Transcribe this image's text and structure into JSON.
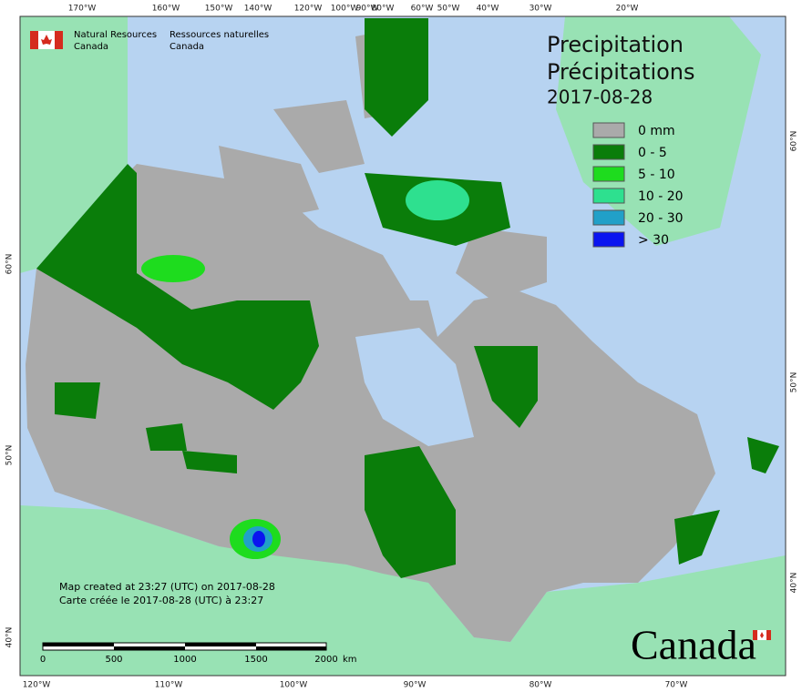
{
  "header": {
    "agency_en": [
      "Natural Resources",
      "Canada"
    ],
    "agency_fr": [
      "Ressources naturelles",
      "Canada"
    ]
  },
  "title": {
    "en": "Precipitation",
    "fr": "Précipitations",
    "date": "2017-08-28"
  },
  "legend": {
    "items": [
      {
        "label": "0 mm",
        "color": "#aaaaaa"
      },
      {
        "label": "0 - 5",
        "color": "#0a7d0a"
      },
      {
        "label": "5 - 10",
        "color": "#1edc1e"
      },
      {
        "label": "10 - 20",
        "color": "#2ee08f"
      },
      {
        "label": "20 - 30",
        "color": "#21a0c8"
      },
      {
        "label": "> 30",
        "color": "#0a14f0"
      }
    ]
  },
  "graticule": {
    "top": [
      "170°W",
      "160°W",
      "150°W",
      "140°W",
      "120°W",
      "100°W",
      "90°W",
      "80°W",
      "60°W",
      "50°W",
      "40°W",
      "30°W",
      "20°W"
    ],
    "bottom": [
      "120°W",
      "110°W",
      "100°W",
      "90°W",
      "80°W",
      "70°W"
    ],
    "left": [
      "60°N",
      "50°N",
      "40°N"
    ],
    "right": [
      "60°N",
      "50°N",
      "40°N"
    ]
  },
  "notes": [
    "Map created at 23:27 (UTC) on 2017-08-28",
    "Carte créée le 2017-08-28 (UTC) à 23:27"
  ],
  "scale_bar": {
    "labels": [
      "0",
      "500",
      "1000",
      "1500",
      "2000"
    ],
    "unit": "km"
  },
  "wordmark": "Canada"
}
